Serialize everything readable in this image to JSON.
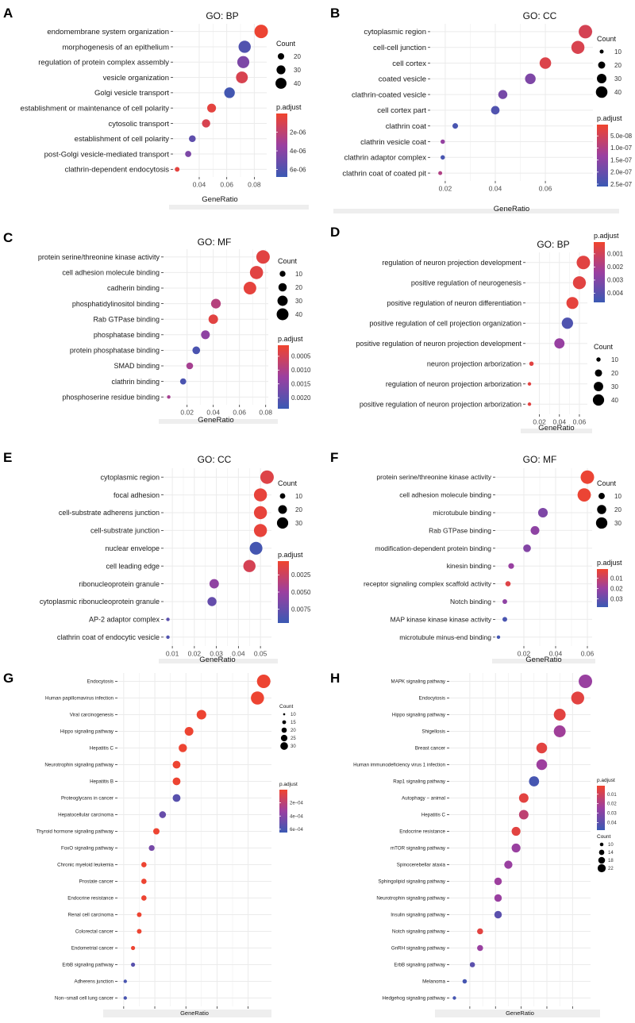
{
  "colors": {
    "low": "#f0442e",
    "mid": "#9b3fa0",
    "high": "#3a59b3",
    "grid": "#ebebeb",
    "plot_bg": "#ffffff",
    "strip": "#eeeeee"
  },
  "chart_data": [
    {
      "panel": "A",
      "type": "scatter",
      "title": "GO: BP",
      "xlabel": "GeneRatio",
      "categories": [
        "endomembrane system organization",
        "morphogenesis of an epithelium",
        "regulation of protein complex assembly",
        "vesicle organization",
        "Golgi vesicle transport",
        "establishment or maintenance of cell polarity",
        "cytosolic transport",
        "establishment of cell polarity",
        "post-Golgi vesicle-mediated transport",
        "clathrin-dependent endocytosis"
      ],
      "x": [
        0.085,
        0.073,
        0.072,
        0.071,
        0.062,
        0.049,
        0.045,
        0.035,
        0.032,
        0.024
      ],
      "count": [
        46,
        40,
        39,
        38,
        33,
        26,
        24,
        19,
        17,
        13
      ],
      "p_adjust": [
        1.5e-07,
        6e-06,
        4.5e-06,
        1e-06,
        6.5e-06,
        5e-07,
        1e-06,
        5.5e-06,
        4.5e-06,
        5e-07
      ],
      "xlim": [
        0.021,
        0.089
      ],
      "xticks": [
        0.04,
        0.06,
        0.08
      ],
      "xtick_labels": [
        "0.04",
        "0.06",
        "0.08"
      ],
      "count_legend": {
        "title": "Count",
        "values": [
          20,
          30,
          40
        ],
        "labels": [
          "20",
          "30",
          "40"
        ]
      },
      "size_range": [
        10,
        46
      ],
      "color_legend": {
        "title": "p.adjust",
        "min": 0,
        "max": 6.8e-06,
        "ticks": [
          2e-06,
          4e-06,
          6e-06
        ],
        "labels": [
          "2e-06",
          "4e-06",
          "6e-06"
        ]
      },
      "legend_order": "count-first"
    },
    {
      "panel": "B",
      "type": "scatter",
      "title": "GO: CC",
      "xlabel": "GeneRatio",
      "categories": [
        "cytoplasmic region",
        "cell-cell junction",
        "cell cortex",
        "coated vesicle",
        "clathrin-coated vesicle",
        "cell cortex part",
        "clathrin coat",
        "clathrin vesicle coat",
        "clathrin adaptor complex",
        "clathrin coat of coated pit"
      ],
      "x": [
        0.076,
        0.073,
        0.06,
        0.054,
        0.043,
        0.04,
        0.024,
        0.019,
        0.019,
        0.018
      ],
      "count": [
        43,
        41,
        34,
        30,
        24,
        22,
        13,
        10,
        10,
        9
      ],
      "p_adjust": [
        4.5e-08,
        4e-08,
        3.5e-08,
        1.7e-07,
        1.8e-07,
        2.3e-07,
        2.4e-07,
        1.4e-07,
        2.4e-07,
        1e-07
      ],
      "xlim": [
        0.014,
        0.079
      ],
      "xticks": [
        0.02,
        0.04,
        0.06
      ],
      "xtick_labels": [
        "0.02",
        "0.04",
        "0.06"
      ],
      "count_legend": {
        "title": "Count",
        "values": [
          10,
          20,
          30,
          40
        ],
        "labels": [
          "10",
          "20",
          "30",
          "40"
        ]
      },
      "size_range": [
        8,
        43
      ],
      "color_legend": {
        "title": "p.adjust",
        "min": 3e-09,
        "max": 2.6e-07,
        "ticks": [
          5e-08,
          1e-07,
          1.5e-07,
          2e-07,
          2.5e-07
        ],
        "labels": [
          "5.0e-08",
          "1.0e-07",
          "1.5e-07",
          "2.0e-07",
          "2.5e-07"
        ]
      },
      "legend_order": "count-first"
    },
    {
      "panel": "C",
      "type": "scatter",
      "title": "GO: MF",
      "xlabel": "GeneRatio",
      "categories": [
        "protein serine/threonine kinase activity",
        "cell adhesion molecule binding",
        "cadherin binding",
        "phosphatidylinositol binding",
        "Rab GTPase binding",
        "phosphatase binding",
        "protein phosphatase binding",
        "SMAD binding",
        "clathrin binding",
        "phosphoserine residue binding"
      ],
      "x": [
        0.078,
        0.073,
        0.068,
        0.042,
        0.04,
        0.034,
        0.027,
        0.022,
        0.017,
        0.006
      ],
      "count": [
        42,
        40,
        37,
        22,
        21,
        18,
        14,
        11,
        9,
        3
      ],
      "p_adjust": [
        0.0003,
        0.0003,
        0.00025,
        0.0009,
        0.0003,
        0.0014,
        0.0022,
        0.0011,
        0.0022,
        0.0011
      ],
      "xlim": [
        0.002,
        0.082
      ],
      "xticks": [
        0.02,
        0.04,
        0.06,
        0.08
      ],
      "xtick_labels": [
        "0.02",
        "0.04",
        "0.06",
        "0.08"
      ],
      "count_legend": {
        "title": "Count",
        "values": [
          10,
          20,
          30,
          40
        ],
        "labels": [
          "10",
          "20",
          "30",
          "40"
        ]
      },
      "size_range": [
        3,
        42
      ],
      "color_legend": {
        "title": "p.adjust",
        "min": 0.0001,
        "max": 0.0024,
        "ticks": [
          0.0005,
          0.001,
          0.0015,
          0.002
        ],
        "labels": [
          "0.0005",
          "0.0010",
          "0.0015",
          "0.0020"
        ]
      },
      "legend_order": "count-first"
    },
    {
      "panel": "D",
      "type": "scatter",
      "title": "GO: BP",
      "xlabel": "GeneRatio",
      "categories": [
        "regulation of neuron projection development",
        "positive regulation of neurogenesis",
        "positive regulation of neuron differentiation",
        "positive regulation of cell projection organization",
        "positive regulation of neuron projection development",
        "neuron projection arborization",
        "regulation of neuron projection arborization",
        "positive regulation of neuron projection arborization"
      ],
      "x": [
        0.064,
        0.06,
        0.053,
        0.048,
        0.04,
        0.012,
        0.01,
        0.01
      ],
      "count": [
        45,
        42,
        37,
        34,
        29,
        9,
        7,
        7
      ],
      "p_adjust": [
        0.0005,
        0.0005,
        0.0004,
        0.0042,
        0.0025,
        0.0005,
        0.0005,
        0.0005
      ],
      "xlim": [
        0.006,
        0.068
      ],
      "xticks": [
        0.02,
        0.04,
        0.06
      ],
      "xtick_labels": [
        "0.02",
        "0.04",
        "0.06"
      ],
      "x_extra_label": "0.02 0.04 0.06",
      "count_legend": {
        "title": "Count",
        "values": [
          10,
          20,
          30,
          40
        ],
        "labels": [
          "10",
          "20",
          "30",
          "40"
        ]
      },
      "size_range": [
        7,
        45
      ],
      "color_legend": {
        "title": "p.adjust",
        "min": 0.0001,
        "max": 0.0047,
        "ticks": [
          0.001,
          0.002,
          0.003,
          0.004
        ],
        "labels": [
          "0.001",
          "0.002",
          "0.003",
          "0.004"
        ]
      },
      "legend_order": "color-first"
    },
    {
      "panel": "E",
      "type": "scatter",
      "title": "GO: CC",
      "xlabel": "GeneRatio",
      "categories": [
        "cytoplasmic region",
        "focal adhesion",
        "cell-substrate adherens junction",
        "cell-substrate junction",
        "nuclear envelope",
        "cell leading edge",
        "ribonucleoprotein granule",
        "cytoplasmic ribonucleoprotein granule",
        "AP-2 adaptor complex",
        "clathrin coat of endocytic vesicle"
      ],
      "x": [
        0.053,
        0.05,
        0.05,
        0.05,
        0.048,
        0.045,
        0.029,
        0.028,
        0.008,
        0.008
      ],
      "count": [
        34,
        32,
        32,
        32,
        31,
        29,
        19,
        18,
        5,
        5
      ],
      "p_adjust": [
        0.0015,
        0.001,
        0.001,
        0.001,
        0.009,
        0.002,
        0.0055,
        0.0075,
        0.008,
        0.0085
      ],
      "xlim": [
        0.006,
        0.055
      ],
      "xticks": [
        0.01,
        0.02,
        0.03,
        0.04,
        0.05
      ],
      "xtick_labels": [
        "0.01",
        "0.02",
        "0.03",
        "0.04",
        "0.05"
      ],
      "count_legend": {
        "title": "Count",
        "values": [
          10,
          20,
          30
        ],
        "labels": [
          "10",
          "20",
          "30"
        ]
      },
      "size_range": [
        5,
        34
      ],
      "color_legend": {
        "title": "p.adjust",
        "min": 0.0005,
        "max": 0.0095,
        "ticks": [
          0.0025,
          0.005,
          0.0075
        ],
        "labels": [
          "0.0025",
          "0.0050",
          "0.0075"
        ]
      },
      "legend_order": "count-first"
    },
    {
      "panel": "F",
      "type": "scatter",
      "title": "GO: MF",
      "xlabel": "GeneRatio",
      "categories": [
        "protein serine/threonine kinase activity",
        "cell adhesion molecule binding",
        "microtubule binding",
        "Rab GTPase binding",
        "modification-dependent protein binding",
        "kinesin binding",
        "receptor signaling complex scaffold activity",
        "Notch binding",
        "MAP kinase kinase kinase activity",
        "microtubule minus-end binding"
      ],
      "x": [
        0.06,
        0.058,
        0.032,
        0.027,
        0.022,
        0.012,
        0.01,
        0.008,
        0.008,
        0.004
      ],
      "count": [
        34,
        33,
        18,
        15,
        12,
        7,
        6,
        5,
        5,
        3
      ],
      "p_adjust": [
        0.002,
        0.002,
        0.025,
        0.022,
        0.024,
        0.02,
        0.005,
        0.022,
        0.035,
        0.036
      ],
      "xlim": [
        0.002,
        0.063
      ],
      "xticks": [
        0.02,
        0.04,
        0.06
      ],
      "xtick_labels": [
        "0.02",
        "0.04",
        "0.06"
      ],
      "count_legend": {
        "title": "Count",
        "values": [
          10,
          20,
          30
        ],
        "labels": [
          "10",
          "20",
          "30"
        ]
      },
      "size_range": [
        3,
        34
      ],
      "color_legend": {
        "title": "p.adjust",
        "min": 0.001,
        "max": 0.038,
        "ticks": [
          0.01,
          0.02,
          0.03
        ],
        "labels": [
          "0.01",
          "0.02",
          "0.03"
        ]
      },
      "legend_order": "count-first"
    },
    {
      "panel": "G",
      "type": "scatter",
      "title": "KEGG",
      "xlabel": "GeneRatio",
      "categories": [
        "Endocytosis",
        "Human papillomavirus infection",
        "Viral carcinogenesis",
        "Hippo signaling pathway",
        "Hepatitis C",
        "Neurotrophin signaling pathway",
        "Hepatitis B",
        "Proteoglycans in cancer",
        "Hepatocellular carcinoma",
        "Thyroid hormone signaling pathway",
        "FoxO signaling pathway",
        "Chronic myeloid leukemia",
        "Prostate cancer",
        "Endocrine resistance",
        "Renal cell carcinoma",
        "Colorectal cancer",
        "Endometrial cancer",
        "ErbB signaling pathway",
        "Adherens junction",
        "Non−small cell lung cancer"
      ],
      "x": [
        0.13,
        0.126,
        0.09,
        0.082,
        0.078,
        0.074,
        0.074,
        0.074,
        0.065,
        0.061,
        0.058,
        0.053,
        0.053,
        0.053,
        0.05,
        0.05,
        0.046,
        0.046,
        0.041,
        0.041
      ],
      "count": [
        32,
        31,
        22,
        20,
        19,
        18,
        18,
        18,
        16,
        15,
        14,
        13,
        13,
        13,
        12,
        12,
        11,
        11,
        10,
        10
      ],
      "p_adjust": [
        1e-05,
        1e-05,
        1e-05,
        1e-05,
        1e-05,
        1e-05,
        1e-05,
        0.00055,
        0.0005,
        1e-05,
        0.00045,
        1e-05,
        1e-05,
        1e-05,
        1e-05,
        1e-05,
        1e-05,
        0.00055,
        0.0006,
        0.0006
      ],
      "xlim": [
        0.036,
        0.135
      ],
      "xticks": [
        0.04,
        0.06,
        0.08,
        0.1,
        0.12
      ],
      "xtick_labels": [
        "0.04",
        "0.06",
        "0.08",
        "0.10",
        "0.12"
      ],
      "count_legend": {
        "title": "Count",
        "values": [
          10,
          15,
          20,
          25,
          30
        ],
        "labels": [
          "10",
          "15",
          "20",
          "25",
          "30"
        ]
      },
      "size_range": [
        10,
        32
      ],
      "color_legend": {
        "title": "p.adjust",
        "min": 0.0,
        "max": 0.00065,
        "ticks": [
          0.0002,
          0.0004,
          0.0006
        ],
        "labels": [
          "2e−04",
          "4e−04",
          "6e−04"
        ]
      },
      "legend_order": "count-first"
    },
    {
      "panel": "H",
      "type": "scatter",
      "title": "KEGG",
      "xlabel": "GeneRatio",
      "categories": [
        "MAPK signaling pathway",
        "Endocytosis",
        "Hippo signaling pathway",
        "Shigellosis",
        "Breast cancer",
        "Human immunodeficiency virus 1 infection",
        "Rap1 signaling pathway",
        "Autophagy − animal",
        "Hepatitis C",
        "Endocrine resistance",
        "mTOR signaling pathway",
        "Spinocerebellar ataxia",
        "Sphingolipid signaling pathway",
        "Neurotrophin signaling pathway",
        "Insulin signaling pathway",
        "Notch signaling pathway",
        "GnRH signaling pathway",
        "ErbB signaling pathway",
        "Melanoma",
        "Hedgehog signaling pathway"
      ],
      "x": [
        0.075,
        0.072,
        0.065,
        0.065,
        0.058,
        0.058,
        0.055,
        0.051,
        0.051,
        0.048,
        0.048,
        0.045,
        0.041,
        0.041,
        0.041,
        0.034,
        0.034,
        0.031,
        0.028,
        0.024
      ],
      "count": [
        22,
        21,
        19,
        19,
        17,
        17,
        16,
        15,
        15,
        14,
        14,
        13,
        12,
        12,
        12,
        10,
        10,
        9,
        8,
        7
      ],
      "p_adjust": [
        0.025,
        0.005,
        0.005,
        0.023,
        0.005,
        0.024,
        0.045,
        0.005,
        0.015,
        0.005,
        0.025,
        0.025,
        0.024,
        0.025,
        0.04,
        0.005,
        0.025,
        0.04,
        0.045,
        0.045
      ],
      "xlim": [
        0.022,
        0.077
      ],
      "xticks": [
        0.03,
        0.04,
        0.05,
        0.06,
        0.07
      ],
      "xtick_labels": [
        "0.03",
        "0.04",
        "0.05",
        "0.06",
        "0.07"
      ],
      "count_legend": {
        "title": "Count",
        "values": [
          10,
          14,
          18,
          22
        ],
        "labels": [
          "10",
          "14",
          "18",
          "22"
        ]
      },
      "size_range": [
        7,
        22
      ],
      "color_legend": {
        "title": "p.adjust",
        "min": 0.001,
        "max": 0.048,
        "ticks": [
          0.01,
          0.02,
          0.03,
          0.04
        ],
        "labels": [
          "0.01",
          "0.02",
          "0.03",
          "0.04"
        ]
      },
      "legend_order": "color-first"
    }
  ]
}
